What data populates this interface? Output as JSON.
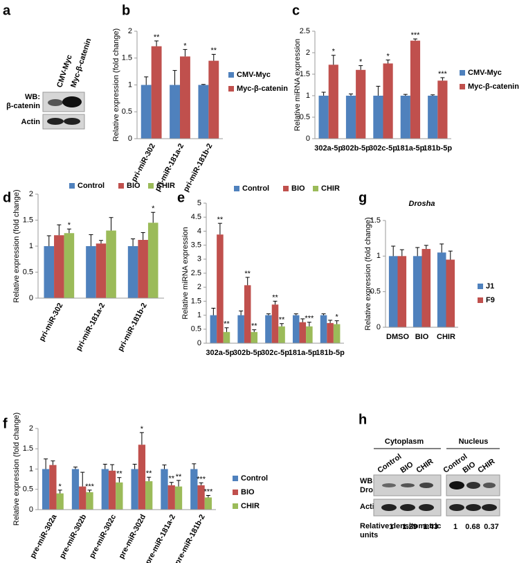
{
  "blots": {
    "a": {
      "panel": "a",
      "lanes": [
        "CMV-Myc",
        "Myc-β-catenin"
      ],
      "wb": "WB:",
      "target": "β-catenin",
      "loading": "Actin"
    },
    "h": {
      "panel": "h",
      "wb": "WB:",
      "target": "Drosha",
      "loading": "Actin",
      "densitometry_label": "Relative densitometric units",
      "groups": [
        {
          "name": "Cytoplasm",
          "lanes": [
            "Control",
            "BIO",
            "CHIR"
          ],
          "densitometry": [
            1,
            1.29,
            1.43
          ]
        },
        {
          "name": "Nucleus",
          "lanes": [
            "Control",
            "BIO",
            "CHIR"
          ],
          "densitometry": [
            1,
            0.68,
            0.37
          ]
        }
      ]
    }
  },
  "chart_data": [
    {
      "type": "bar",
      "panel": "b",
      "y_label": "Relative expression (fold change)",
      "categories": [
        "pri-miR-302",
        "pri-miR-181a-2",
        "pri-miR-181b-2"
      ],
      "series": [
        {
          "name": "CMV-Myc",
          "color": "#4f81bd",
          "values": [
            1,
            1,
            1
          ],
          "errors": [
            0.15,
            0.27,
            0.01
          ],
          "stars": [
            null,
            null,
            null
          ]
        },
        {
          "name": "Myc-β-catenin",
          "color": "#c0504d",
          "values": [
            1.72,
            1.53,
            1.45
          ],
          "errors": [
            0.1,
            0.13,
            0.12
          ],
          "stars": [
            "**",
            "*",
            "**"
          ]
        }
      ],
      "ylim": [
        0,
        2
      ],
      "yticks": [
        0,
        0.5,
        1,
        1.5,
        2
      ],
      "legend": "right"
    },
    {
      "type": "bar",
      "panel": "c",
      "y_label": "Relative miRNA expression",
      "categories": [
        "302a-5p",
        "302b-5p",
        "302c-5p",
        "181a-5p",
        "181b-5p"
      ],
      "series": [
        {
          "name": "CMV-Myc",
          "color": "#4f81bd",
          "values": [
            1,
            1,
            1,
            1,
            1
          ],
          "errors": [
            0.08,
            0.04,
            0.22,
            0.03,
            0.02
          ],
          "stars": [
            null,
            null,
            null,
            null,
            null
          ]
        },
        {
          "name": "Myc-β-catenin",
          "color": "#c0504d",
          "values": [
            1.72,
            1.6,
            1.75,
            2.28,
            1.35
          ],
          "errors": [
            0.22,
            0.1,
            0.08,
            0.04,
            0.07
          ],
          "stars": [
            "*",
            "*",
            "*",
            "***",
            "***"
          ]
        }
      ],
      "ylim": [
        0,
        2.5
      ],
      "yticks": [
        0,
        0.5,
        1,
        1.5,
        2,
        2.5
      ],
      "legend": "right"
    },
    {
      "type": "bar",
      "panel": "d",
      "y_label": "Relative expression (fold change)",
      "categories": [
        "pri-miR-302",
        "pri-miR-181a-2",
        "pri-miR-181b-2"
      ],
      "series": [
        {
          "name": "Control",
          "color": "#4f81bd",
          "values": [
            1,
            1,
            1
          ],
          "errors": [
            0.2,
            0.22,
            0.14
          ],
          "stars": [
            null,
            null,
            null
          ]
        },
        {
          "name": "BIO",
          "color": "#c0504d",
          "values": [
            1.21,
            1.05,
            1.12
          ],
          "errors": [
            0.2,
            0.06,
            0.14
          ],
          "stars": [
            null,
            null,
            null
          ]
        },
        {
          "name": "CHIR",
          "color": "#9bbb59",
          "values": [
            1.25,
            1.3,
            1.45
          ],
          "errors": [
            0.08,
            0.25,
            0.2
          ],
          "stars": [
            "*",
            null,
            "*"
          ]
        }
      ],
      "ylim": [
        0,
        2
      ],
      "yticks": [
        0,
        0.5,
        1,
        1.5,
        2
      ],
      "legend": "top"
    },
    {
      "type": "bar",
      "panel": "e",
      "y_label": "Relative miRNA expression",
      "categories": [
        "302a-5p",
        "302b-5p",
        "302c-5p",
        "181a-5p",
        "181b-5p"
      ],
      "series": [
        {
          "name": "Control",
          "color": "#4f81bd",
          "values": [
            1,
            1,
            1,
            1,
            1
          ],
          "errors": [
            0.25,
            0.15,
            0.05,
            0.05,
            0.05
          ],
          "stars": [
            null,
            null,
            null,
            null,
            null
          ]
        },
        {
          "name": "BIO",
          "color": "#c0504d",
          "values": [
            3.88,
            2.07,
            1.38,
            0.75,
            0.72
          ],
          "errors": [
            0.4,
            0.28,
            0.12,
            0.12,
            0.1
          ],
          "stars": [
            "**",
            "**",
            "**",
            null,
            null
          ]
        },
        {
          "name": "CHIR",
          "color": "#9bbb59",
          "values": [
            0.4,
            0.4,
            0.6,
            0.6,
            0.68
          ],
          "errors": [
            0.15,
            0.08,
            0.1,
            0.15,
            0.12
          ],
          "stars": [
            "**",
            "**",
            "**",
            "***",
            "*"
          ]
        }
      ],
      "ylim": [
        0,
        5
      ],
      "yticks": [
        0,
        0.5,
        1,
        1.5,
        2,
        2.5,
        3,
        3.5,
        4,
        4.5,
        5
      ],
      "legend": "top"
    },
    {
      "type": "bar",
      "panel": "f",
      "y_label": "Relative expression (fold change)",
      "categories": [
        "pre-miR-302a",
        "pre-miR-302b",
        "pre-miR-302c",
        "pre-miR-302d",
        "pre-miR-181a-2",
        "pre-miR-181b-2"
      ],
      "series": [
        {
          "name": "Control",
          "color": "#4f81bd",
          "values": [
            1,
            1,
            1,
            1,
            1,
            1
          ],
          "errors": [
            0.25,
            0.05,
            0.12,
            0.12,
            0.1,
            0.13
          ],
          "stars": [
            null,
            null,
            null,
            null,
            null,
            null
          ]
        },
        {
          "name": "BIO",
          "color": "#c0504d",
          "values": [
            1.1,
            0.57,
            0.96,
            1.6,
            0.6,
            0.6
          ],
          "errors": [
            0.1,
            0.35,
            0.15,
            0.3,
            0.07,
            0.06
          ],
          "stars": [
            null,
            null,
            null,
            "*",
            "**",
            "***"
          ]
        },
        {
          "name": "CHIR",
          "color": "#9bbb59",
          "values": [
            0.4,
            0.43,
            0.67,
            0.7,
            0.57,
            0.3
          ],
          "errors": [
            0.08,
            0.05,
            0.12,
            0.1,
            0.15,
            0.05
          ],
          "stars": [
            "*",
            "***",
            "**",
            "**",
            "**",
            "***"
          ]
        }
      ],
      "ylim": [
        0,
        2
      ],
      "yticks": [
        0,
        0.5,
        1,
        1.5,
        2
      ],
      "legend": "right"
    },
    {
      "type": "bar",
      "panel": "g",
      "title": "Drosha",
      "y_label": "Relative expression (fold change)",
      "categories": [
        "DMSO",
        "BIO",
        "CHIR"
      ],
      "series": [
        {
          "name": "J1",
          "color": "#4f81bd",
          "values": [
            1,
            1,
            1.05
          ],
          "errors": [
            0.14,
            0.12,
            0.12
          ],
          "stars": [
            null,
            null,
            null
          ]
        },
        {
          "name": "F9",
          "color": "#c0504d",
          "values": [
            1,
            1.1,
            0.95
          ],
          "errors": [
            0.09,
            0.05,
            0.12
          ],
          "stars": [
            null,
            null,
            null
          ]
        }
      ],
      "ylim": [
        0,
        1.5
      ],
      "yticks": [
        0,
        0.5,
        1,
        1.5
      ],
      "legend": "right"
    }
  ]
}
